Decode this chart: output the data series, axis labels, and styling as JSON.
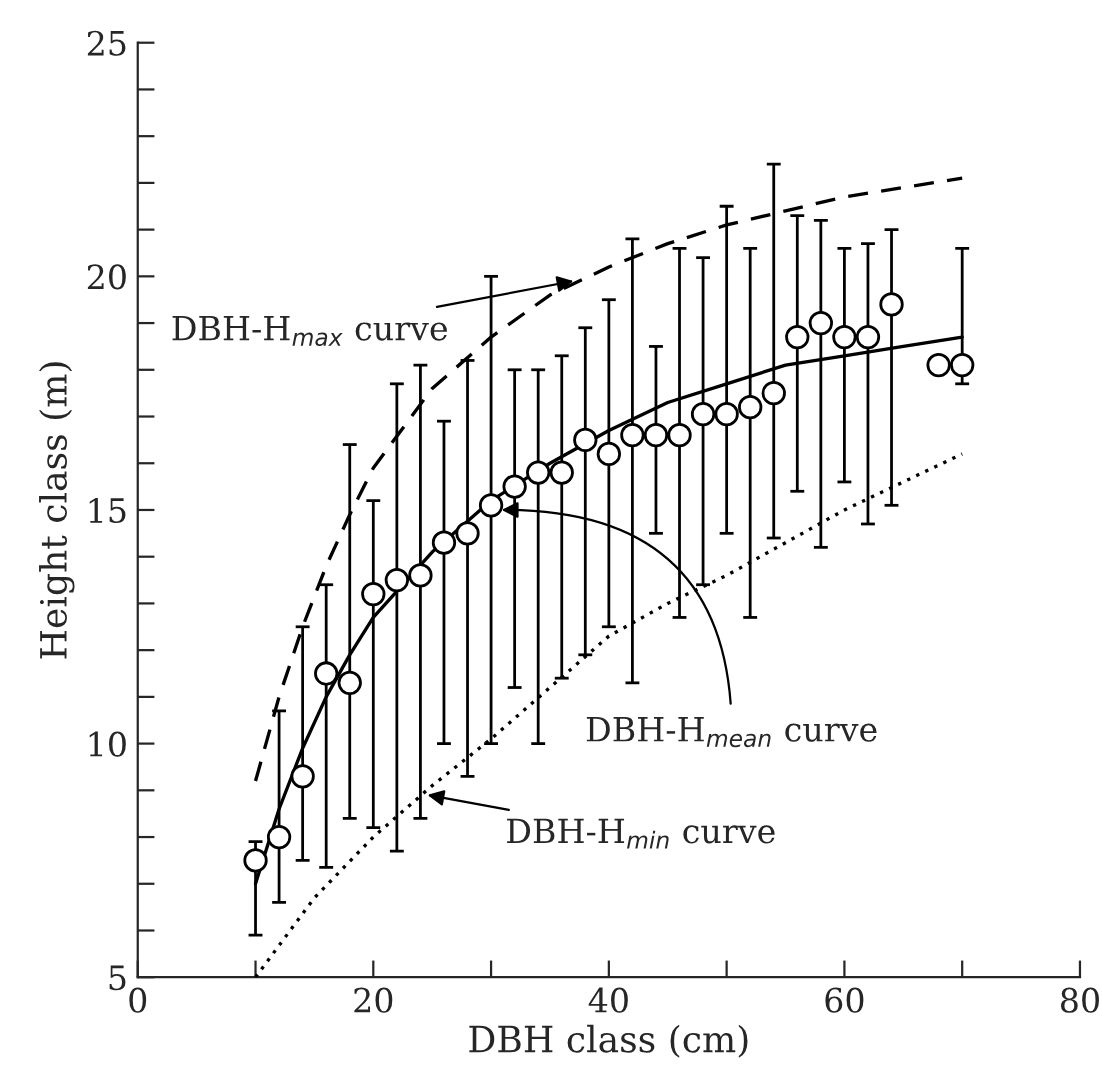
{
  "chart_data": {
    "type": "scatter",
    "xlabel": "DBH class (cm)",
    "ylabel": "Height class (m)",
    "xlim": [
      0,
      80
    ],
    "ylim": [
      5,
      25
    ],
    "xticks": [
      0,
      {
        "value": 10,
        "label": null
      },
      20,
      {
        "value": 30,
        "label": null
      },
      40,
      {
        "value": 50,
        "label": null
      },
      60,
      {
        "value": 70,
        "label": null
      },
      80
    ],
    "yticks": [
      5,
      {
        "value": 6,
        "label": null
      },
      {
        "value": 7,
        "label": null
      },
      {
        "value": 8,
        "label": null
      },
      {
        "value": 9,
        "label": null
      },
      10,
      {
        "value": 11,
        "label": null
      },
      {
        "value": 12,
        "label": null
      },
      {
        "value": 13,
        "label": null
      },
      {
        "value": 14,
        "label": null
      },
      15,
      {
        "value": 16,
        "label": null
      },
      {
        "value": 17,
        "label": null
      },
      {
        "value": 18,
        "label": null
      },
      {
        "value": 19,
        "label": null
      },
      20,
      {
        "value": 21,
        "label": null
      },
      {
        "value": 22,
        "label": null
      },
      {
        "value": 23,
        "label": null
      },
      {
        "value": 24,
        "label": null
      },
      25
    ],
    "grid": false,
    "legend": false,
    "series": [
      {
        "color": "#000000",
        "marker": "circle",
        "x": [
          10,
          12,
          14,
          16,
          18,
          20,
          22,
          24,
          26,
          28,
          30,
          32,
          34,
          36,
          38,
          40,
          42,
          44,
          46,
          48,
          50,
          52,
          54,
          56,
          58,
          60,
          62,
          64,
          68,
          70
        ],
        "values": [
          7.5,
          8.0,
          9.3,
          11.5,
          11.3,
          13.2,
          13.5,
          13.6,
          14.3,
          14.5,
          15.1,
          15.5,
          15.8,
          15.8,
          16.5,
          16.2,
          16.6,
          16.6,
          16.6,
          17.05,
          17.05,
          17.2,
          17.5,
          18.7,
          19.0,
          18.7,
          18.7,
          19.4,
          18.1,
          18.1
        ],
        "errors": [
          [
            5.9,
            7.9
          ],
          [
            6.6,
            10.7
          ],
          [
            7.5,
            12.5
          ],
          [
            7.35,
            13.4
          ],
          [
            8.4,
            16.4
          ],
          [
            8.2,
            15.2
          ],
          [
            7.7,
            17.7
          ],
          [
            8.4,
            18.1
          ],
          [
            10.0,
            16.9
          ],
          [
            9.3,
            18.2
          ],
          [
            10.0,
            20.0
          ],
          [
            11.2,
            18.0
          ],
          [
            10.0,
            18.0
          ],
          [
            11.4,
            18.3
          ],
          [
            11.9,
            18.9
          ],
          [
            12.5,
            19.5
          ],
          [
            11.3,
            20.8
          ],
          [
            14.5,
            18.5
          ],
          [
            12.7,
            20.6
          ],
          [
            13.4,
            20.4
          ],
          [
            14.5,
            21.5
          ],
          [
            12.7,
            20.6
          ],
          [
            14.4,
            22.4
          ],
          [
            15.4,
            21.3
          ],
          [
            14.2,
            21.2
          ],
          [
            15.6,
            20.6
          ],
          [
            14.7,
            20.7
          ],
          [
            15.1,
            21.0
          ],
          null,
          [
            17.7,
            20.6
          ]
        ]
      },
      {
        "type": "line",
        "color": "#000000",
        "line_style": "dashed",
        "marker": "none",
        "x": [
          10,
          12,
          14,
          16,
          18,
          20,
          25,
          30,
          35,
          40,
          45,
          50,
          55,
          60,
          65,
          70
        ],
        "values": [
          9.2,
          11.0,
          12.5,
          13.8,
          14.9,
          15.9,
          17.6,
          18.7,
          19.6,
          20.2,
          20.7,
          21.1,
          21.4,
          21.7,
          21.9,
          22.1
        ]
      },
      {
        "type": "line",
        "color": "#000000",
        "line_style": "solid",
        "marker": "none",
        "x": [
          10,
          12,
          14,
          16,
          18,
          20,
          25,
          30,
          35,
          40,
          45,
          50,
          55,
          60,
          65,
          70
        ],
        "values": [
          7.0,
          8.6,
          9.9,
          11.0,
          11.9,
          12.7,
          14.1,
          15.2,
          16.0,
          16.7,
          17.3,
          17.7,
          18.1,
          18.3,
          18.5,
          18.7
        ]
      },
      {
        "type": "line",
        "color": "#000000",
        "line_style": "dotted",
        "marker": "none",
        "x": [
          10,
          15,
          20,
          25,
          30,
          35,
          40,
          45,
          50,
          55,
          60,
          65,
          70
        ],
        "values": [
          5.0,
          6.7,
          8.0,
          9.1,
          10.1,
          11.2,
          12.3,
          13.0,
          13.6,
          14.3,
          15.0,
          15.6,
          16.2
        ]
      }
    ],
    "annotations": [
      {
        "text": "DBH-H$_{max}$ curve",
        "x": 37,
        "y": 19.9
      },
      {
        "text": "DBH-H$_{mean}$ curve",
        "x": 30.9,
        "y": 15.0
      },
      {
        "text": "DBH-H$_{min}$ curve",
        "x": 24.6,
        "y": 8.9
      }
    ]
  }
}
